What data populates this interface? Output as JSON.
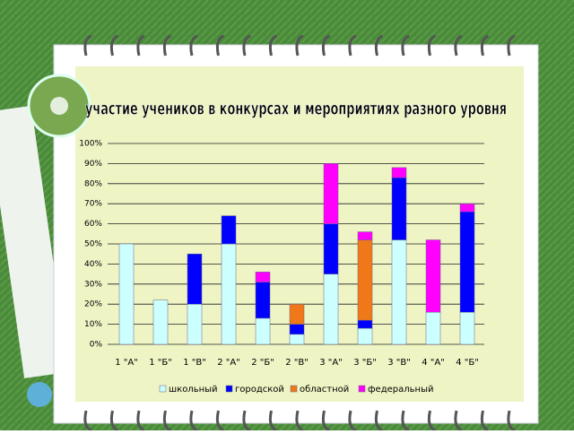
{
  "chart_data": {
    "type": "stacked_bar",
    "title": "участие учеников в конкурсах и мероприятиях разного уровня",
    "categories": [
      "1 \"А\"",
      "1 \"Б\"",
      "1 \"В\"",
      "2 \"А\"",
      "2 \"Б\"",
      "2 \"В\"",
      "3 \"А\"",
      "3 \"Б\"",
      "3 \"В\"",
      "4 \"А\"",
      "4 \"Б\""
    ],
    "series": [
      {
        "name": "школьный",
        "color": "#ccffff",
        "values": [
          50,
          22,
          20,
          50,
          13,
          5,
          35,
          8,
          52,
          16,
          16
        ]
      },
      {
        "name": "городской",
        "color": "#0000ff",
        "values": [
          null,
          null,
          25,
          14,
          18,
          5,
          25,
          4,
          31,
          null,
          50
        ]
      },
      {
        "name": "областной",
        "color": "#f07818",
        "values": [
          null,
          null,
          null,
          null,
          null,
          10,
          null,
          40,
          null,
          null,
          null
        ]
      },
      {
        "name": "федеральный",
        "color": "#ff00ff",
        "values": [
          null,
          null,
          null,
          null,
          5,
          null,
          30,
          4,
          5,
          36,
          4
        ]
      }
    ],
    "ylim": [
      0,
      100
    ],
    "yticks": [
      {
        "value": 0,
        "label": "0%"
      },
      {
        "value": 10,
        "label": "10%"
      },
      {
        "value": 20,
        "label": "20%"
      },
      {
        "value": 30,
        "label": "30%"
      },
      {
        "value": 40,
        "label": "40%"
      },
      {
        "value": 50,
        "label": "50%"
      },
      {
        "value": 60,
        "label": "60%"
      },
      {
        "value": 70,
        "label": "70%"
      },
      {
        "value": 80,
        "label": "80%"
      },
      {
        "value": 90,
        "label": "90%"
      },
      {
        "value": 100,
        "label": "100%"
      }
    ],
    "grid": true
  }
}
